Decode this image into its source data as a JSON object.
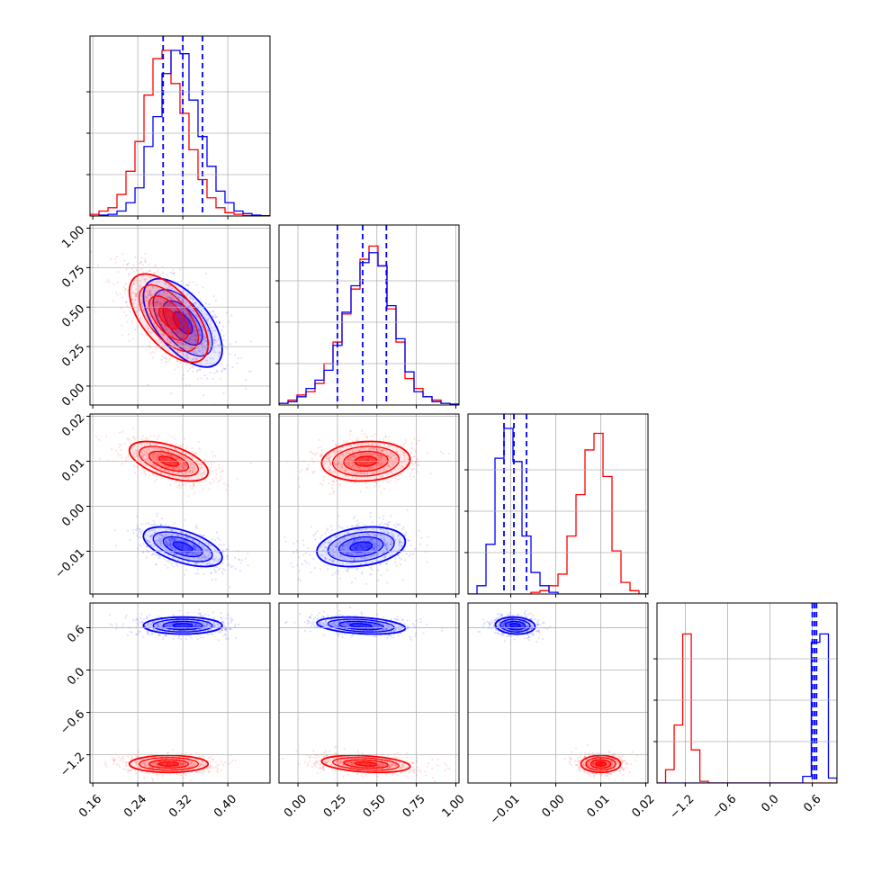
{
  "chart_data": {
    "type": "corner",
    "parameters": [
      {
        "ticks": [
          "0.16",
          "0.24",
          "0.32",
          "0.40"
        ],
        "range": [
          0.155,
          0.475
        ],
        "tick_values": [
          0.16,
          0.24,
          0.32,
          0.4
        ]
      },
      {
        "ticks": [
          "0.00",
          "0.25",
          "0.50",
          "0.75",
          "1.00"
        ],
        "range": [
          -0.12,
          1.02
        ],
        "tick_values": [
          0.0,
          0.25,
          0.5,
          0.75,
          1.0
        ]
      },
      {
        "ticks": [
          "-0.01",
          "0.00",
          "0.01",
          "0.02"
        ],
        "range": [
          -0.0195,
          0.0205
        ],
        "tick_values": [
          -0.01,
          0.0,
          0.01,
          0.02
        ]
      },
      {
        "ticks": [
          "-1.2",
          "-0.6",
          "0.0",
          "0.6"
        ],
        "range": [
          -1.6,
          0.95
        ],
        "tick_values": [
          -1.2,
          -0.6,
          0.0,
          0.6
        ]
      }
    ],
    "series": [
      {
        "color": "#0000ff",
        "mean": [
          0.32,
          0.4,
          -0.009,
          0.63
        ],
        "sigma": [
          0.035,
          0.14,
          0.0022,
          0.06
        ]
      },
      {
        "color": "#ff0000",
        "mean": [
          0.295,
          0.43,
          0.01,
          -1.33
        ],
        "sigma": [
          0.035,
          0.14,
          0.0022,
          0.06
        ]
      }
    ],
    "quantile_lines": {
      "color": "#0000ff",
      "values": [
        [
          0.285,
          0.32,
          0.355
        ],
        [
          0.25,
          0.41,
          0.56
        ],
        [
          -0.0115,
          -0.0093,
          -0.0065
        ],
        [
          0.6,
          0.63,
          0.66
        ]
      ]
    },
    "histograms": [
      {
        "bins": [
          0.155,
          0.475
        ],
        "blue": [
          0,
          0.005,
          0.01,
          0.03,
          0.08,
          0.17,
          0.42,
          0.6,
          0.86,
          1.0,
          0.98,
          0.7,
          0.48,
          0.3,
          0.15,
          0.08,
          0.03,
          0.015,
          0.005,
          0.002
        ],
        "red": [
          0.01,
          0.03,
          0.05,
          0.13,
          0.27,
          0.45,
          0.73,
          0.95,
          1.0,
          0.8,
          0.62,
          0.4,
          0.22,
          0.11,
          0.05,
          0.02,
          0.01,
          0.003,
          0.001,
          0
        ]
      },
      {
        "bins": [
          -0.12,
          1.02
        ],
        "blue": [
          0.01,
          0.02,
          0.05,
          0.1,
          0.15,
          0.21,
          0.36,
          0.56,
          0.72,
          0.86,
          0.92,
          0.84,
          0.6,
          0.4,
          0.2,
          0.08,
          0.05,
          0.02,
          0.01,
          0.005
        ],
        "red": [
          0.01,
          0.03,
          0.06,
          0.08,
          0.13,
          0.25,
          0.38,
          0.55,
          0.7,
          0.88,
          0.96,
          0.84,
          0.58,
          0.38,
          0.16,
          0.1,
          0.05,
          0.03,
          0.01,
          0.005
        ]
      },
      {
        "bins": [
          -0.0195,
          0.0205
        ],
        "blue": [
          0,
          0.05,
          0.3,
          0.82,
          1.0,
          0.8,
          0.35,
          0.13,
          0.05,
          0.01,
          0,
          0,
          0,
          0,
          0,
          0,
          0,
          0,
          0,
          0
        ],
        "red": [
          0,
          0,
          0,
          0,
          0,
          0,
          0,
          0.01,
          0.02,
          0.05,
          0.12,
          0.35,
          0.6,
          0.87,
          0.97,
          0.71,
          0.26,
          0.07,
          0.02,
          0
        ]
      },
      {
        "bins": [
          -1.6,
          0.95
        ],
        "blue": [
          0,
          0,
          0,
          0,
          0,
          0,
          0,
          0,
          0,
          0,
          0,
          0,
          0,
          0,
          0,
          0,
          0,
          0.04,
          0.85,
          0.9,
          0.03
        ],
        "red": [
          0,
          0.08,
          0.35,
          0.9,
          0.2,
          0.01,
          0,
          0,
          0,
          0,
          0,
          0,
          0,
          0,
          0,
          0,
          0,
          0,
          0,
          0,
          0
        ]
      }
    ],
    "correlations": {
      "1_0": {
        "blue": -0.6,
        "red": -0.6
      },
      "2_0": {
        "blue": -0.55,
        "red": -0.55
      },
      "2_1": {
        "blue": 0.25,
        "red": 0.1
      },
      "3_0": {
        "blue": 0.0,
        "red": 0.0
      },
      "3_1": {
        "blue": -0.3,
        "red": -0.3
      },
      "3_2": {
        "blue": -0.1,
        "red": 0.0
      }
    },
    "grid": true
  }
}
